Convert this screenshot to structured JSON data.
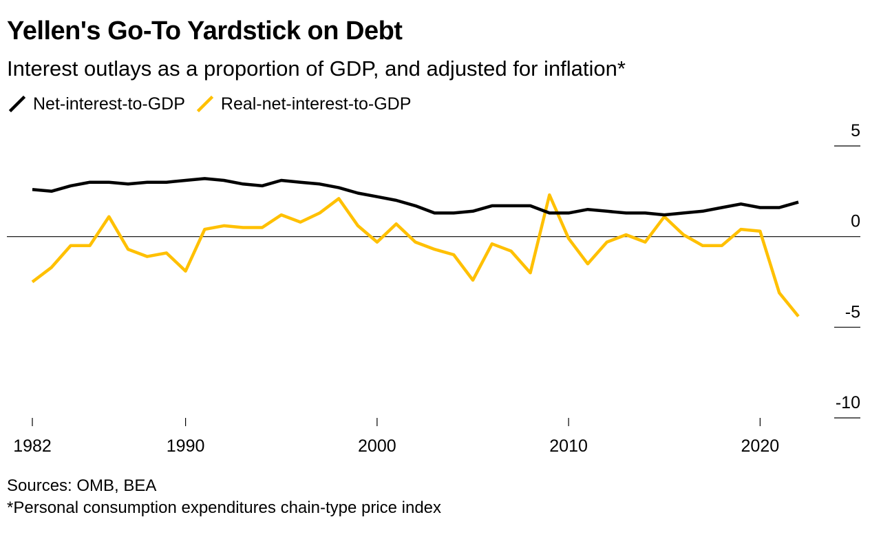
{
  "title": "Yellen's Go-To Yardstick on Debt",
  "subtitle": "Interest outlays as a proportion of GDP, and adjusted for inflation*",
  "source": "Sources: OMB, BEA",
  "footnote": "*Personal consumption expenditures chain-type price index",
  "chart_data": {
    "type": "line",
    "title": "Yellen's Go-To Yardstick on Debt",
    "subtitle": "Interest outlays as a proportion of GDP, and adjusted for inflation*",
    "x": [
      1982,
      1983,
      1984,
      1985,
      1986,
      1987,
      1988,
      1989,
      1990,
      1991,
      1992,
      1993,
      1994,
      1995,
      1996,
      1997,
      1998,
      1999,
      2000,
      2001,
      2002,
      2003,
      2004,
      2005,
      2006,
      2007,
      2008,
      2009,
      2010,
      2011,
      2012,
      2013,
      2014,
      2015,
      2016,
      2017,
      2018,
      2019,
      2020,
      2021,
      2022
    ],
    "x_ticks": [
      1982,
      1990,
      2000,
      2010,
      2020
    ],
    "y_ticks": [
      5,
      0,
      -5,
      -10
    ],
    "ylim": [
      -10,
      5
    ],
    "xlim": [
      1982,
      2022
    ],
    "y_axis_position": "right",
    "legend_position": "top-left",
    "grid": false,
    "series": [
      {
        "name": "Net-interest-to-GDP",
        "color": "#000000",
        "values": [
          2.6,
          2.5,
          2.8,
          3.0,
          3.0,
          2.9,
          3.0,
          3.0,
          3.1,
          3.2,
          3.1,
          2.9,
          2.8,
          3.1,
          3.0,
          2.9,
          2.7,
          2.4,
          2.2,
          2.0,
          1.7,
          1.3,
          1.3,
          1.4,
          1.7,
          1.7,
          1.7,
          1.3,
          1.3,
          1.5,
          1.4,
          1.3,
          1.3,
          1.2,
          1.3,
          1.4,
          1.6,
          1.8,
          1.6,
          1.6,
          1.9
        ]
      },
      {
        "name": "Real-net-interest-to-GDP",
        "color": "#FFC000",
        "values": [
          -2.5,
          -1.7,
          -0.5,
          -0.5,
          1.1,
          -0.7,
          -1.1,
          -0.9,
          -1.9,
          0.4,
          0.6,
          0.5,
          0.5,
          1.2,
          0.8,
          1.3,
          2.1,
          0.6,
          -0.3,
          0.7,
          -0.3,
          -0.7,
          -1.0,
          -2.4,
          -0.4,
          -0.8,
          -2.0,
          2.3,
          -0.1,
          -1.5,
          -0.3,
          0.1,
          -0.3,
          1.1,
          0.1,
          -0.5,
          -0.5,
          0.4,
          0.3,
          -3.1,
          -4.4
        ]
      }
    ]
  }
}
